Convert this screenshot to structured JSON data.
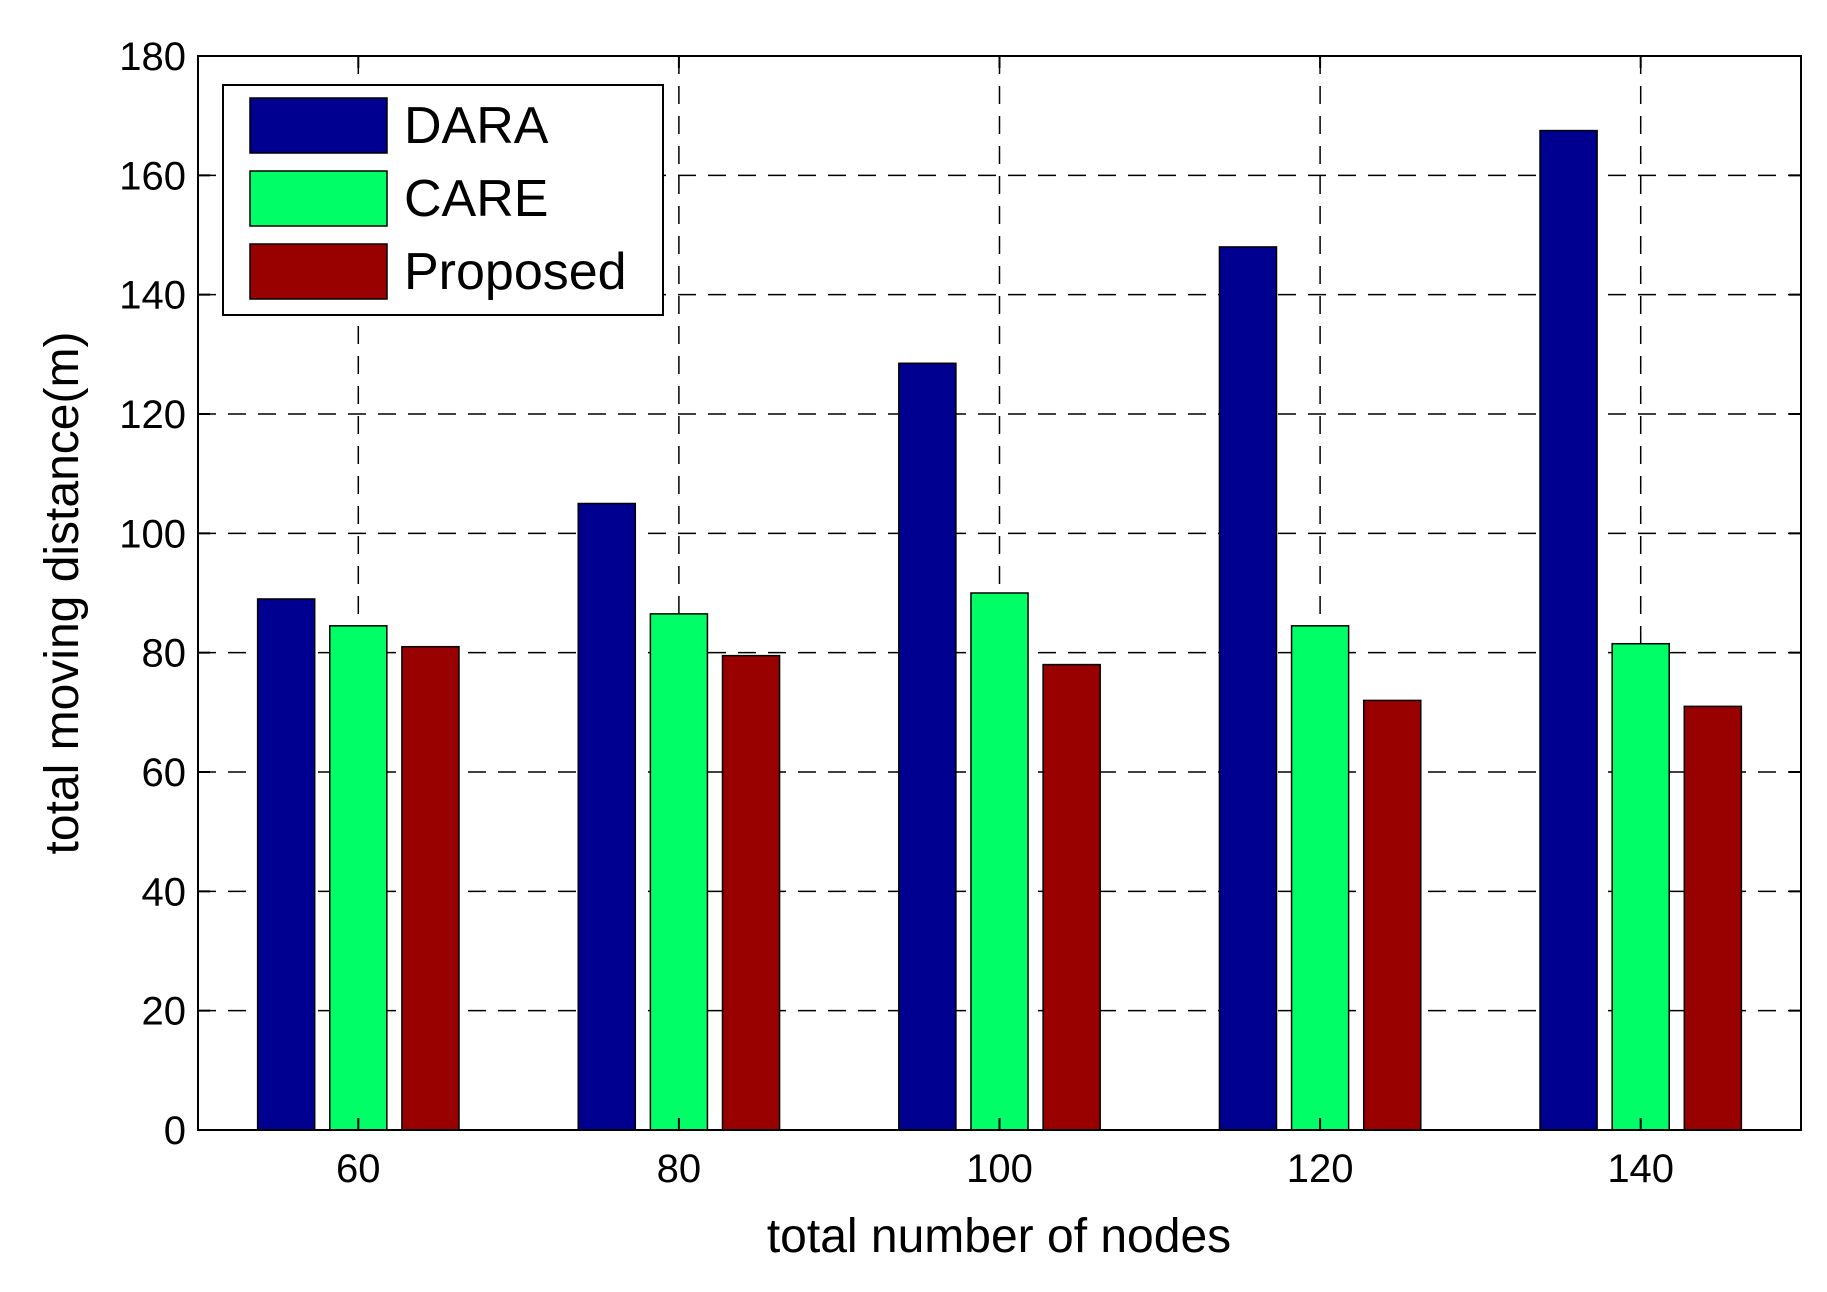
{
  "chart_data": {
    "type": "bar",
    "title": "",
    "xlabel": "total number of nodes",
    "ylabel": "total moving distance(m)",
    "categories": [
      "60",
      "80",
      "100",
      "120",
      "140"
    ],
    "ylim": [
      0,
      180
    ],
    "yticks": [
      0,
      20,
      40,
      60,
      80,
      100,
      120,
      140,
      160,
      180
    ],
    "yticklabels": [
      "0",
      "20",
      "40",
      "60",
      "80",
      "100",
      "120",
      "140",
      "160",
      "180"
    ],
    "grid": true,
    "legend_position": "top-left",
    "series": [
      {
        "name": "DARA",
        "color": "#000090",
        "values": [
          89,
          105,
          128.5,
          148,
          167.5
        ]
      },
      {
        "name": "CARE",
        "color": "#00ff66",
        "values": [
          84.5,
          86.5,
          90,
          84.5,
          81.5
        ]
      },
      {
        "name": "Proposed",
        "color": "#990000",
        "values": [
          81,
          79.5,
          78,
          72,
          71
        ]
      }
    ]
  }
}
